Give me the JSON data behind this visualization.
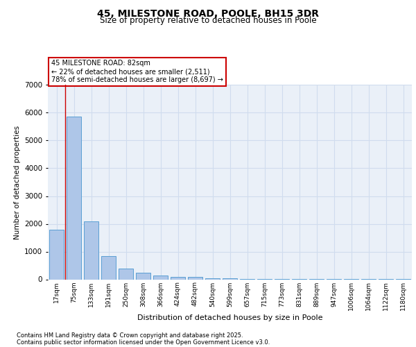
{
  "title1": "45, MILESTONE ROAD, POOLE, BH15 3DR",
  "title2": "Size of property relative to detached houses in Poole",
  "xlabel": "Distribution of detached houses by size in Poole",
  "ylabel": "Number of detached properties",
  "categories": [
    "17sqm",
    "75sqm",
    "133sqm",
    "191sqm",
    "250sqm",
    "308sqm",
    "366sqm",
    "424sqm",
    "482sqm",
    "540sqm",
    "599sqm",
    "657sqm",
    "715sqm",
    "773sqm",
    "831sqm",
    "889sqm",
    "947sqm",
    "1006sqm",
    "1064sqm",
    "1122sqm",
    "1180sqm"
  ],
  "values": [
    1800,
    5850,
    2100,
    830,
    380,
    250,
    150,
    80,
    100,
    50,
    30,
    10,
    5,
    5,
    3,
    2,
    2,
    1,
    1,
    1,
    1
  ],
  "bar_color": "#aec6e8",
  "bar_edge_color": "#5a9fd4",
  "grid_color": "#d0dcee",
  "background_color": "#eaf0f8",
  "vline_x": 0.5,
  "vline_color": "#cc0000",
  "annotation_text": "45 MILESTONE ROAD: 82sqm\n← 22% of detached houses are smaller (2,511)\n78% of semi-detached houses are larger (8,697) →",
  "annotation_box_color": "#ffffff",
  "annotation_box_edge": "#cc0000",
  "ylim": [
    0,
    7000
  ],
  "yticks": [
    0,
    1000,
    2000,
    3000,
    4000,
    5000,
    6000,
    7000
  ],
  "footnote1": "Contains HM Land Registry data © Crown copyright and database right 2025.",
  "footnote2": "Contains public sector information licensed under the Open Government Licence v3.0."
}
